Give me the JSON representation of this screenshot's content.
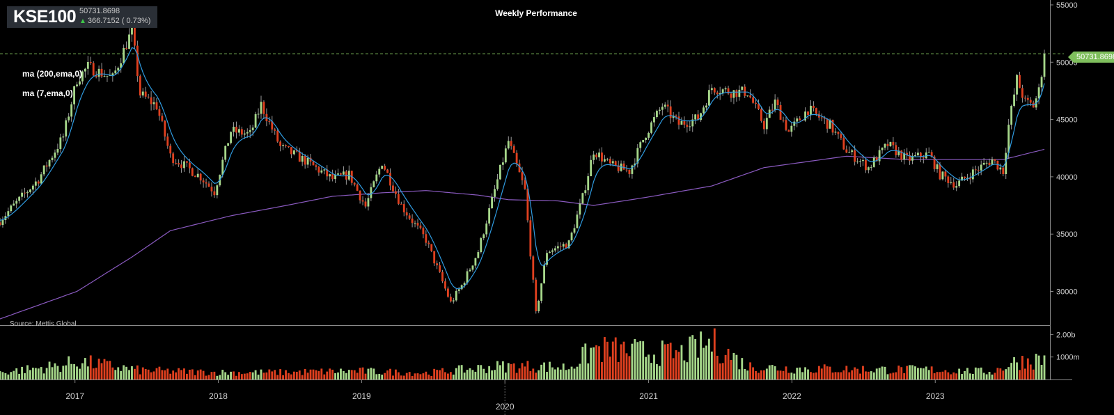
{
  "header": {
    "ticker": "KSE100",
    "price": "50731.8698",
    "change": "366.7152 ( 0.73%)",
    "change_direction": "up-arrow-icon"
  },
  "title": "Weekly Performance",
  "indicators": [
    "ma (200,ema,0)",
    "ma (7,ema,0)"
  ],
  "source": "Source: Mettis Global",
  "last_price_tag": "50731.8698",
  "colors": {
    "background": "#000000",
    "up": "#a6d78a",
    "down": "#e0401f",
    "ma7": "#2f9be0",
    "ma200": "#8a5ac0",
    "last_price_line": "#7fbf5d"
  },
  "chart_data": [
    {
      "type": "candlestick",
      "title": "Weekly Performance",
      "series_name": "KSE100",
      "x_ticks": [
        "2017",
        "2018",
        "2019",
        "2020",
        "2021",
        "2022",
        "2023"
      ],
      "x_range": [
        "2016-06",
        "2023-10"
      ],
      "y_ticks": [
        "55000",
        "50000",
        "45000",
        "40000",
        "35000",
        "30000"
      ],
      "ylim": [
        27000,
        55500
      ],
      "last_price": 50731.8698,
      "price_path": [
        [
          "2016-06-24",
          36200
        ],
        [
          "2016-09-30",
          39800
        ],
        [
          "2016-12-02",
          43500
        ],
        [
          "2017-01-06",
          48500
        ],
        [
          "2017-02-03",
          49600
        ],
        [
          "2017-04-07",
          48600
        ],
        [
          "2017-05-26",
          52800
        ],
        [
          "2017-06-16",
          47200
        ],
        [
          "2017-07-28",
          46200
        ],
        [
          "2017-09-01",
          41800
        ],
        [
          "2017-11-17",
          40000
        ],
        [
          "2017-12-22",
          38700
        ],
        [
          "2018-02-02",
          44000
        ],
        [
          "2018-03-23",
          43700
        ],
        [
          "2018-04-20",
          46300
        ],
        [
          "2018-06-08",
          42600
        ],
        [
          "2018-08-10",
          41400
        ],
        [
          "2018-10-19",
          39800
        ],
        [
          "2018-11-30",
          40200
        ],
        [
          "2019-01-11",
          37400
        ],
        [
          "2019-02-22",
          41300
        ],
        [
          "2019-04-12",
          37500
        ],
        [
          "2019-06-14",
          34500
        ],
        [
          "2019-08-16",
          29000
        ],
        [
          "2019-09-13",
          30500
        ],
        [
          "2019-10-25",
          33500
        ],
        [
          "2019-12-20",
          40600
        ],
        [
          "2020-01-10",
          43100
        ],
        [
          "2020-02-21",
          38800
        ],
        [
          "2020-03-20",
          28000
        ],
        [
          "2020-04-17",
          33500
        ],
        [
          "2020-06-12",
          34200
        ],
        [
          "2020-07-17",
          38200
        ],
        [
          "2020-08-14",
          42300
        ],
        [
          "2020-09-25",
          41000
        ],
        [
          "2020-11-13",
          40500
        ],
        [
          "2020-12-25",
          43800
        ],
        [
          "2021-02-05",
          46200
        ],
        [
          "2021-03-19",
          44600
        ],
        [
          "2021-05-07",
          45100
        ],
        [
          "2021-06-11",
          47800
        ],
        [
          "2021-07-30",
          47400
        ],
        [
          "2021-09-10",
          47400
        ],
        [
          "2021-10-22",
          44500
        ],
        [
          "2021-11-19",
          46500
        ],
        [
          "2021-12-24",
          43900
        ],
        [
          "2022-02-11",
          45900
        ],
        [
          "2022-04-08",
          44500
        ],
        [
          "2022-05-20",
          42300
        ],
        [
          "2022-07-15",
          40800
        ],
        [
          "2022-09-02",
          42800
        ],
        [
          "2022-10-21",
          41500
        ],
        [
          "2022-12-16",
          42000
        ],
        [
          "2023-01-13",
          40200
        ],
        [
          "2023-02-24",
          39300
        ],
        [
          "2023-04-07",
          40400
        ],
        [
          "2023-05-26",
          41500
        ],
        [
          "2023-06-23",
          40500
        ],
        [
          "2023-07-07",
          44500
        ],
        [
          "2023-07-28",
          48500
        ],
        [
          "2023-08-18",
          46500
        ],
        [
          "2023-09-08",
          46200
        ],
        [
          "2023-09-22",
          47500
        ],
        [
          "2023-10-06",
          50731.87
        ]
      ],
      "ma200_path": [
        [
          "2016-06-24",
          27600
        ],
        [
          "2017-01-06",
          30000
        ],
        [
          "2017-05-26",
          33000
        ],
        [
          "2017-09-01",
          35300
        ],
        [
          "2018-02-02",
          36600
        ],
        [
          "2018-06-08",
          37400
        ],
        [
          "2018-10-19",
          38300
        ],
        [
          "2019-02-22",
          38600
        ],
        [
          "2019-06-14",
          38800
        ],
        [
          "2019-10-25",
          38400
        ],
        [
          "2020-01-10",
          38000
        ],
        [
          "2020-05-15",
          37900
        ],
        [
          "2020-08-14",
          37500
        ],
        [
          "2020-12-25",
          38200
        ],
        [
          "2021-06-11",
          39200
        ],
        [
          "2021-10-22",
          40800
        ],
        [
          "2022-05-20",
          41800
        ],
        [
          "2022-10-21",
          41500
        ],
        [
          "2023-04-07",
          41500
        ],
        [
          "2023-06-23",
          41500
        ],
        [
          "2023-10-06",
          42400
        ]
      ],
      "overlays": [
        "ma (200,ema,0)",
        "ma (7,ema,0)"
      ]
    },
    {
      "type": "bar",
      "series_name": "Volume",
      "y_ticks": [
        "2.00b",
        "1000m"
      ],
      "ylim": [
        0,
        2300000000
      ],
      "volume_path": [
        [
          "2016-06-24",
          350000000
        ],
        [
          "2016-12-02",
          700000000
        ],
        [
          "2017-01-06",
          900000000
        ],
        [
          "2017-06-16",
          450000000
        ],
        [
          "2017-12-22",
          350000000
        ],
        [
          "2018-06-08",
          350000000
        ],
        [
          "2018-12-14",
          420000000
        ],
        [
          "2019-06-14",
          320000000
        ],
        [
          "2019-12-20",
          650000000
        ],
        [
          "2020-03-20",
          650000000
        ],
        [
          "2020-06-12",
          600000000
        ],
        [
          "2020-08-14",
          1500000000
        ],
        [
          "2020-12-25",
          1350000000
        ],
        [
          "2021-03-19",
          1250000000
        ],
        [
          "2021-06-11",
          1800000000
        ],
        [
          "2021-09-10",
          650000000
        ],
        [
          "2021-12-24",
          550000000
        ],
        [
          "2022-06-10",
          500000000
        ],
        [
          "2022-12-16",
          480000000
        ],
        [
          "2023-05-26",
          380000000
        ],
        [
          "2023-07-28",
          900000000
        ],
        [
          "2023-10-06",
          1000000000
        ]
      ]
    }
  ]
}
